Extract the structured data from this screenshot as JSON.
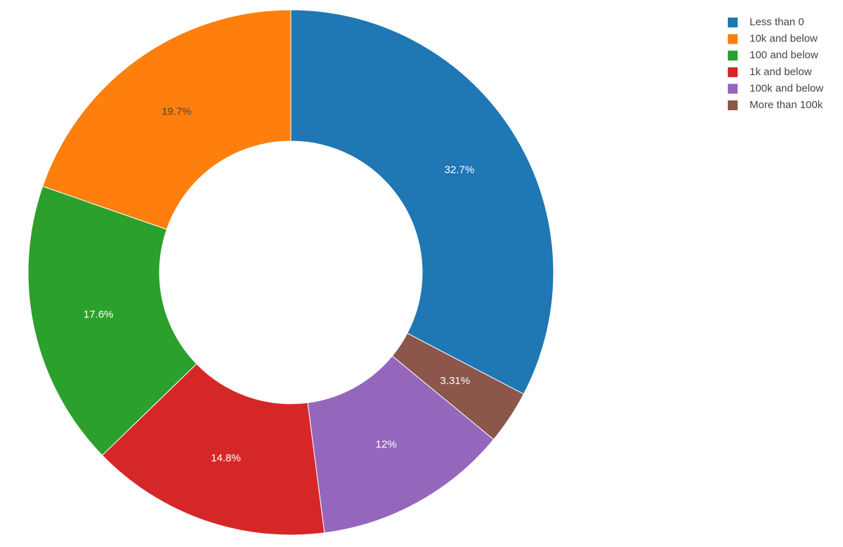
{
  "chart_data": {
    "type": "pie",
    "hole": true,
    "slices": [
      {
        "label": "Less than 0",
        "value": 32.7,
        "text": "32.7%",
        "color": "#1f77b4",
        "text_color": "#ffffff"
      },
      {
        "label": "More than 100k",
        "value": 3.31,
        "text": "3.31%",
        "color": "#8c564b",
        "text_color": "#ffffff"
      },
      {
        "label": "100k and below",
        "value": 12,
        "text": "12%",
        "color": "#9467bd",
        "text_color": "#ffffff"
      },
      {
        "label": "1k and below",
        "value": 14.8,
        "text": "14.8%",
        "color": "#d62728",
        "text_color": "#ffffff"
      },
      {
        "label": "100 and below",
        "value": 17.6,
        "text": "17.6%",
        "color": "#2ca02c",
        "text_color": "#ffffff"
      },
      {
        "label": "10k and below",
        "value": 19.7,
        "text": "19.7%",
        "color": "#ff7f0e",
        "text_color": "#444444"
      }
    ],
    "legend": {
      "placement": "top-right",
      "order": [
        "Less than 0",
        "10k and below",
        "100 and below",
        "1k and below",
        "100k and below",
        "More than 100k"
      ]
    }
  }
}
